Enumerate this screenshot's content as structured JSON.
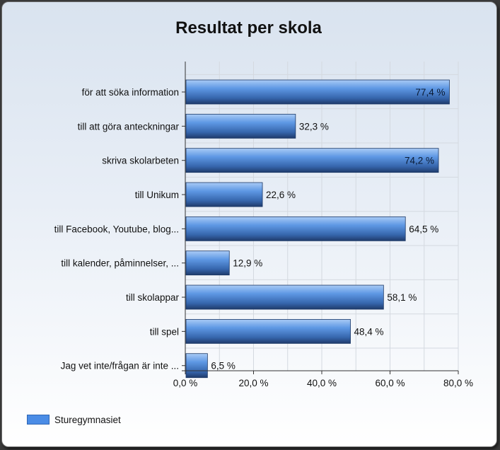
{
  "chart_data": {
    "type": "bar",
    "orientation": "horizontal",
    "title": "Resultat per skola",
    "categories": [
      "för att söka information",
      "till att göra anteckningar",
      "skriva skolarbeten",
      "till Unikum",
      "till Facebook, Youtube, blog...",
      "till kalender, påminnelser, ...",
      "till skolappar",
      "till spel",
      "Jag vet inte/frågan är inte ..."
    ],
    "series": [
      {
        "name": "Sturegymnasiet",
        "values": [
          77.4,
          32.3,
          74.2,
          22.6,
          64.5,
          12.9,
          58.1,
          48.4,
          6.5
        ],
        "labels": [
          "77,4 %",
          "32,3 %",
          "74,2 %",
          "22,6 %",
          "64,5 %",
          "12,9 %",
          "58,1 %",
          "48,4 %",
          "6,5 %"
        ]
      }
    ],
    "xlim": [
      0,
      80
    ],
    "xticks": [
      0,
      20,
      40,
      60,
      80
    ],
    "xtick_labels": [
      "0,0 %",
      "20,0 %",
      "40,0 %",
      "60,0 %",
      "80,0 %"
    ],
    "grid": true,
    "legend_position": "bottom-left",
    "colors": {
      "bar_light": "#8fbaf2",
      "bar_mid": "#4a86d6",
      "bar_dark": "#1f3f73",
      "grid": "#d4d9e0"
    }
  }
}
